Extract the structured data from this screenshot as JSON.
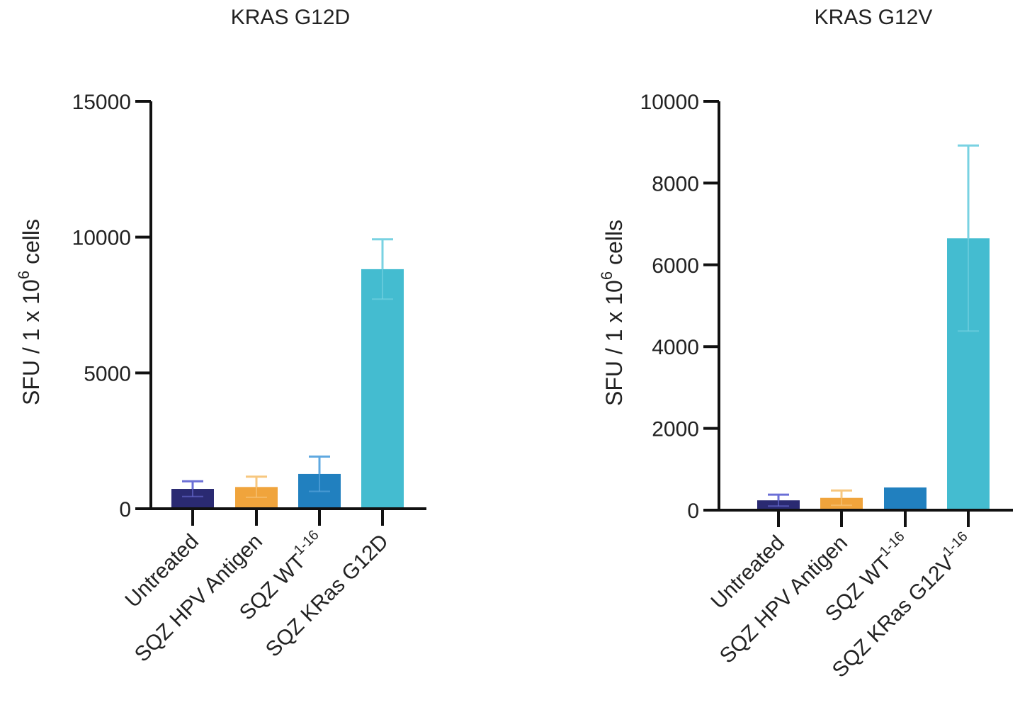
{
  "chart_data": [
    {
      "type": "bar",
      "title": "KRAS G12D",
      "ylabel": {
        "prefix": "SFU / 1 x 10",
        "sup": "6",
        "suffix": " cells"
      },
      "ylim": [
        0,
        15000
      ],
      "yticks": [
        0,
        5000,
        10000,
        15000
      ],
      "categories": [
        {
          "label": "Untreated",
          "sup": ""
        },
        {
          "label": "SQZ HPV Antigen",
          "sup": ""
        },
        {
          "label": "SQZ WT",
          "sup": "1-16"
        },
        {
          "label": "SQZ KRas G12D",
          "sup": ""
        }
      ],
      "values": [
        730,
        800,
        1280,
        8820
      ],
      "errors": [
        280,
        380,
        640,
        1100
      ],
      "colors": [
        "#2a2a72",
        "#f0a43c",
        "#2180bf",
        "#44bcd0"
      ],
      "error_colors": [
        "#6b6fd6",
        "#f7c77f",
        "#5fa8e0",
        "#79d2e2"
      ]
    },
    {
      "type": "bar",
      "title": "KRAS G12V",
      "ylabel": {
        "prefix": "SFU / 1 x 10",
        "sup": "6",
        "suffix": " cells"
      },
      "ylim": [
        0,
        10000
      ],
      "yticks": [
        0,
        2000,
        4000,
        6000,
        8000,
        10000
      ],
      "categories": [
        {
          "label": "Untreated",
          "sup": ""
        },
        {
          "label": "SQZ HPV Antigen",
          "sup": ""
        },
        {
          "label": "SQZ WT",
          "sup": "1-16"
        },
        {
          "label": "SQZ KRas G12V",
          "sup": "1-16"
        }
      ],
      "values": [
        240,
        300,
        555,
        6650
      ],
      "errors": [
        140,
        180,
        0,
        2270
      ],
      "colors": [
        "#2a2a72",
        "#f0a43c",
        "#2180bf",
        "#44bcd0"
      ],
      "error_colors": [
        "#6b6fd6",
        "#f7c77f",
        "#5fa8e0",
        "#79d2e2"
      ]
    }
  ]
}
